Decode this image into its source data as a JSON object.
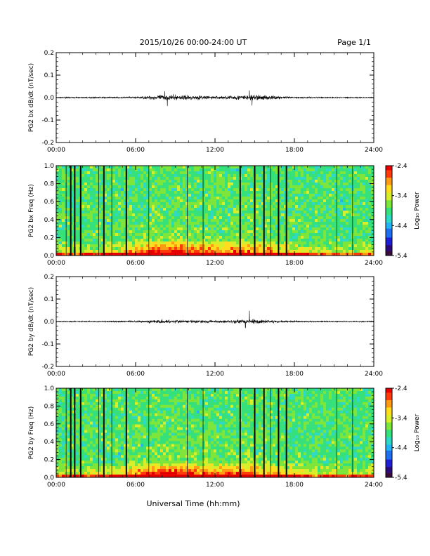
{
  "header": {
    "title": "2015/10/26  00:00-24:00 UT",
    "page_label": "Page 1/1"
  },
  "footer": {
    "xaxis_title": "Universal Time (hh:mm)"
  },
  "time_ticks": [
    "00:00",
    "06:00",
    "12:00",
    "18:00",
    "24:00"
  ],
  "colors": {
    "trace": "#000000",
    "colormap": [
      "#3a0a3a",
      "#2a0a7a",
      "#1e1ed2",
      "#1e6ef0",
      "#24b4f4",
      "#2ed9c6",
      "#36e07a",
      "#7ee63a",
      "#d8ee2a",
      "#ffdc1e",
      "#ff9a14",
      "#ff3a0a",
      "#e80000"
    ]
  },
  "chart_data": [
    {
      "id": "bx_ts",
      "type": "line",
      "ylabel": "PG2 bx dB/dt (nT/sec)",
      "xlim_hours": [
        0,
        24
      ],
      "ylim": [
        -0.2,
        0.2
      ],
      "yticks": [
        "0.2",
        "0.1",
        "0.0",
        "-0.1",
        "-0.2"
      ],
      "baseline": 0.0,
      "envelope": {
        "x_hours": [
          0,
          3,
          6,
          7,
          8,
          9,
          10,
          11,
          12,
          13,
          14,
          15,
          16,
          17,
          18,
          20,
          22,
          24
        ],
        "amplitude": [
          0.004,
          0.005,
          0.007,
          0.014,
          0.022,
          0.02,
          0.018,
          0.016,
          0.012,
          0.014,
          0.02,
          0.024,
          0.018,
          0.01,
          0.007,
          0.005,
          0.005,
          0.004
        ]
      },
      "peaks": [
        {
          "x_hours": 8.2,
          "y": 0.028
        },
        {
          "x_hours": 8.4,
          "y": -0.038
        },
        {
          "x_hours": 14.6,
          "y": 0.032
        },
        {
          "x_hours": 14.8,
          "y": -0.035
        }
      ]
    },
    {
      "id": "bx_spec",
      "type": "heatmap",
      "ylabel": "PG2 bx Freq (Hz)",
      "xlim_hours": [
        0,
        24
      ],
      "ylim": [
        0,
        1.0
      ],
      "yticks": [
        "1.0",
        "0.8",
        "0.6",
        "0.4",
        "0.2",
        "0.0"
      ],
      "colorbar": {
        "label": "Log₁₀ Power",
        "ticks": [
          "-2.4",
          "-3.4",
          "-4.4",
          "-5.4"
        ],
        "range": [
          -5.4,
          -2.4
        ]
      },
      "data_gaps_hours": [
        1.1,
        1.4,
        1.85,
        3.6,
        5.3,
        13.9,
        15.0,
        15.7,
        16.8,
        17.4
      ],
      "thin_lines_hours": [
        0.75,
        3.2,
        4.2,
        7.0,
        9.9,
        11.1,
        16.2,
        21.2,
        22.4
      ]
    },
    {
      "id": "by_ts",
      "type": "line",
      "ylabel": "PG2 by dB/dt (nT/sec)",
      "xlim_hours": [
        0,
        24
      ],
      "ylim": [
        -0.2,
        0.2
      ],
      "yticks": [
        "0.2",
        "0.1",
        "0.0",
        "-0.1",
        "-0.2"
      ],
      "baseline": 0.0,
      "envelope": {
        "x_hours": [
          0,
          3,
          6,
          7,
          8,
          9,
          10,
          11,
          12,
          13,
          14,
          15,
          16,
          17,
          18,
          20,
          22,
          24
        ],
        "amplitude": [
          0.004,
          0.005,
          0.007,
          0.01,
          0.014,
          0.012,
          0.012,
          0.011,
          0.01,
          0.012,
          0.016,
          0.018,
          0.013,
          0.008,
          0.006,
          0.005,
          0.004,
          0.004
        ]
      },
      "peaks": [
        {
          "x_hours": 14.6,
          "y": 0.048
        },
        {
          "x_hours": 14.3,
          "y": -0.028
        }
      ]
    },
    {
      "id": "by_spec",
      "type": "heatmap",
      "ylabel": "PG2 by Freq (Hz)",
      "xlim_hours": [
        0,
        24
      ],
      "ylim": [
        0,
        1.0
      ],
      "yticks": [
        "1.0",
        "0.8",
        "0.6",
        "0.4",
        "0.2",
        "0.0"
      ],
      "colorbar": {
        "label": "Log₁₀ Power",
        "ticks": [
          "-2.4",
          "-3.4",
          "-4.4",
          "-5.4"
        ],
        "range": [
          -5.4,
          -2.4
        ]
      },
      "data_gaps_hours": [
        1.1,
        1.4,
        1.85,
        3.6,
        5.3,
        13.9,
        15.0,
        15.7,
        16.8,
        17.4
      ],
      "thin_lines_hours": [
        0.75,
        3.2,
        4.2,
        7.0,
        9.9,
        11.1,
        16.2,
        21.2,
        22.4
      ]
    }
  ]
}
